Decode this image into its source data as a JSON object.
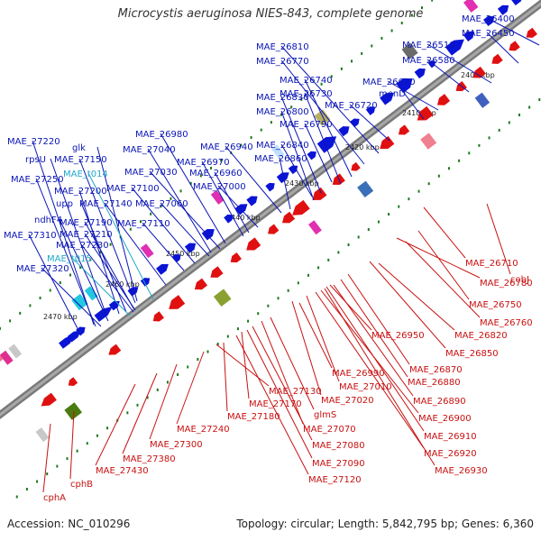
{
  "title": "Microcystis aeruginosa NIES-843, complete genome",
  "footer": {
    "accession": "Accession: NC_010296",
    "summary": "Topology: circular; Length: 5,842,795 bp; Genes: 6,360"
  },
  "colors": {
    "forward": "#0a14d6",
    "reverse": "#e01010",
    "trna": "#22b8d8",
    "forward_label": "#0a14b4",
    "trna_label": "#22a8c8",
    "reverse_label": "#c81010",
    "tick": "#1e7a1e"
  },
  "kbp_labels": [
    "2400 kbp",
    "2410 kbp",
    "2420 kbp",
    "2430 kbp",
    "2440 kbp",
    "2450 kbp",
    "2460 kbp",
    "2470 kbp"
  ],
  "forward_labels": [
    {
      "text": "MAE_26400",
      "type": "gene"
    },
    {
      "text": "MAE_26450",
      "type": "gene"
    },
    {
      "text": "MAE_26510",
      "type": "gene"
    },
    {
      "text": "MAE_26580",
      "type": "gene"
    },
    {
      "text": "MAE_26620",
      "type": "gene"
    },
    {
      "text": "menD",
      "type": "gene"
    },
    {
      "text": "MAE_26810",
      "type": "gene"
    },
    {
      "text": "MAE_26770",
      "type": "gene"
    },
    {
      "text": "MAE_26740",
      "type": "gene"
    },
    {
      "text": "MAE_26730",
      "type": "gene"
    },
    {
      "text": "MAE_26720",
      "type": "gene"
    },
    {
      "text": "MAE_26830",
      "type": "gene"
    },
    {
      "text": "MAE_26800",
      "type": "gene"
    },
    {
      "text": "MAE_26790",
      "type": "gene"
    },
    {
      "text": "MAE_26980",
      "type": "gene"
    },
    {
      "text": "MAE_26940",
      "type": "gene"
    },
    {
      "text": "MAE_26840",
      "type": "gene"
    },
    {
      "text": "MAE_27040",
      "type": "gene"
    },
    {
      "text": "MAE_26970",
      "type": "gene"
    },
    {
      "text": "MAE_26860",
      "type": "gene"
    },
    {
      "text": "MAE_27030",
      "type": "gene"
    },
    {
      "text": "MAE_26960",
      "type": "gene"
    },
    {
      "text": "MAE_27000",
      "type": "gene"
    },
    {
      "text": "MAE_27100",
      "type": "gene"
    },
    {
      "text": "MAE_27060",
      "type": "gene"
    },
    {
      "text": "MAE_27110",
      "type": "gene"
    },
    {
      "text": "MAE_27220",
      "type": "gene"
    },
    {
      "text": "glk",
      "type": "gene"
    },
    {
      "text": "rpsU",
      "type": "gene"
    },
    {
      "text": "MAE_27150",
      "type": "gene"
    },
    {
      "text": "MAE_t014",
      "type": "trna"
    },
    {
      "text": "MAE_27250",
      "type": "gene"
    },
    {
      "text": "MAE_27200",
      "type": "gene"
    },
    {
      "text": "upp",
      "type": "gene"
    },
    {
      "text": "MAE_27140",
      "type": "gene"
    },
    {
      "text": "ndhF4",
      "type": "gene"
    },
    {
      "text": "MAE_27190",
      "type": "gene"
    },
    {
      "text": "MAE_27310",
      "type": "gene"
    },
    {
      "text": "MAE_27210",
      "type": "gene"
    },
    {
      "text": "MAE_27230",
      "type": "gene"
    },
    {
      "text": "MAE_t015",
      "type": "trna"
    },
    {
      "text": "MAE_27320",
      "type": "gene"
    }
  ],
  "reverse_labels": [
    "MAE_26710",
    "cobJ",
    "MAE_26780",
    "MAE_26750",
    "MAE_26760",
    "MAE_26820",
    "MAE_26950",
    "MAE_26850",
    "MAE_26870",
    "MAE_26880",
    "MAE_26990",
    "MAE_27010",
    "MAE_26890",
    "MAE_27020",
    "MAE_27130",
    "MAE_27170",
    "glmS",
    "MAE_26900",
    "MAE_27180",
    "MAE_27070",
    "MAE_26910",
    "MAE_27240",
    "MAE_27080",
    "MAE_26920",
    "MAE_27300",
    "MAE_27090",
    "MAE_27380",
    "MAE_26930",
    "MAE_27120",
    "MAE_27430",
    "cphB",
    "cphA"
  ]
}
